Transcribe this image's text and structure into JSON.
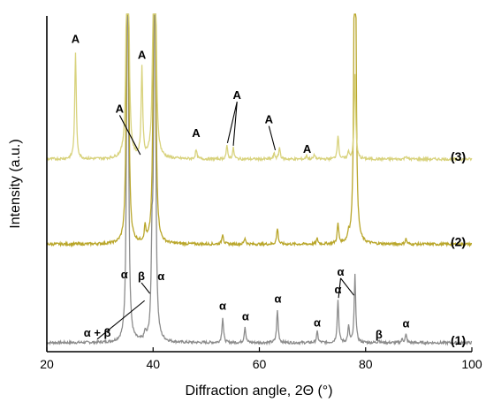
{
  "chart_data": {
    "type": "line",
    "xlabel": "Diffraction angle, 2Θ (°)",
    "ylabel": "Intensity (a.u.)",
    "xlim": [
      20,
      100
    ],
    "x_ticks": [
      "20",
      "40",
      "60",
      "80",
      "100"
    ],
    "grid": false,
    "series": [
      {
        "name": "(1)",
        "color": "#8c8c8c",
        "baseline": 0.1,
        "peaks": [
          [
            35.2,
            6.0
          ],
          [
            38.5,
            0.08
          ],
          [
            39.8,
            0.9
          ],
          [
            40.3,
            6.0
          ],
          [
            53.1,
            0.28
          ],
          [
            57.3,
            0.18
          ],
          [
            63.4,
            0.36
          ],
          [
            70.9,
            0.12
          ],
          [
            74.8,
            0.48
          ],
          [
            76.8,
            0.18
          ],
          [
            78.0,
            0.75
          ],
          [
            82.5,
            0.03
          ],
          [
            86.9,
            0.04
          ],
          [
            87.6,
            0.09
          ]
        ]
      },
      {
        "name": "(2)",
        "color": "#b9a62a",
        "baseline": 1.2,
        "peaks": [
          [
            35.2,
            6.0
          ],
          [
            38.5,
            0.17
          ],
          [
            40.0,
            0.45
          ],
          [
            40.3,
            6.0
          ],
          [
            53.1,
            0.12
          ],
          [
            57.3,
            0.07
          ],
          [
            63.4,
            0.18
          ],
          [
            70.9,
            0.06
          ],
          [
            74.8,
            0.22
          ],
          [
            76.8,
            0.08
          ],
          [
            78.0,
            6.0
          ],
          [
            87.6,
            0.06
          ]
        ]
      },
      {
        "name": "(3)",
        "color": "#d8d27c",
        "baseline": 2.15,
        "peaks": [
          [
            25.4,
            1.2
          ],
          [
            35.2,
            6.0
          ],
          [
            37.9,
            1.0
          ],
          [
            39.9,
            0.35
          ],
          [
            40.3,
            6.0
          ],
          [
            48.1,
            0.1
          ],
          [
            53.9,
            0.14
          ],
          [
            55.1,
            0.12
          ],
          [
            62.8,
            0.06
          ],
          [
            63.8,
            0.13
          ],
          [
            68.9,
            0.04
          ],
          [
            70.4,
            0.05
          ],
          [
            74.8,
            0.27
          ],
          [
            76.8,
            0.08
          ],
          [
            78.0,
            0.95
          ],
          [
            87.6,
            0.04
          ]
        ]
      }
    ],
    "annotations": [
      {
        "text": "A",
        "x": 25.4,
        "y": 3.45
      },
      {
        "text": "A",
        "x": 37.9,
        "y": 3.27
      },
      {
        "text": "A",
        "x": 33.7,
        "y": 2.67,
        "to": [
          [
            37.6,
            2.2
          ]
        ]
      },
      {
        "text": "A",
        "x": 48.1,
        "y": 2.4
      },
      {
        "text": "A",
        "x": 55.8,
        "y": 2.82,
        "to": [
          [
            54.0,
            2.33
          ],
          [
            55.1,
            2.3
          ]
        ]
      },
      {
        "text": "A",
        "x": 61.8,
        "y": 2.55,
        "to": [
          [
            63.0,
            2.25
          ]
        ]
      },
      {
        "text": "A",
        "x": 69.0,
        "y": 2.22
      },
      {
        "text": "α",
        "x": 34.6,
        "y": 0.82
      },
      {
        "text": "β",
        "x": 37.8,
        "y": 0.8,
        "to": [
          [
            39.4,
            0.65
          ]
        ]
      },
      {
        "text": "α",
        "x": 41.5,
        "y": 0.8
      },
      {
        "text": "α + β",
        "x": 29.5,
        "y": 0.17,
        "to": [
          [
            38.4,
            0.57
          ]
        ]
      },
      {
        "text": "α",
        "x": 53.1,
        "y": 0.47
      },
      {
        "text": "α",
        "x": 57.4,
        "y": 0.35
      },
      {
        "text": "α",
        "x": 63.5,
        "y": 0.55
      },
      {
        "text": "α",
        "x": 70.9,
        "y": 0.28
      },
      {
        "text": "α",
        "x": 74.8,
        "y": 0.65
      },
      {
        "text": "α",
        "x": 75.3,
        "y": 0.85,
        "to": [
          [
            74.9,
            0.6
          ],
          [
            77.8,
            0.63
          ]
        ]
      },
      {
        "text": "β",
        "x": 82.5,
        "y": 0.15
      },
      {
        "text": "α",
        "x": 87.6,
        "y": 0.27
      }
    ]
  }
}
